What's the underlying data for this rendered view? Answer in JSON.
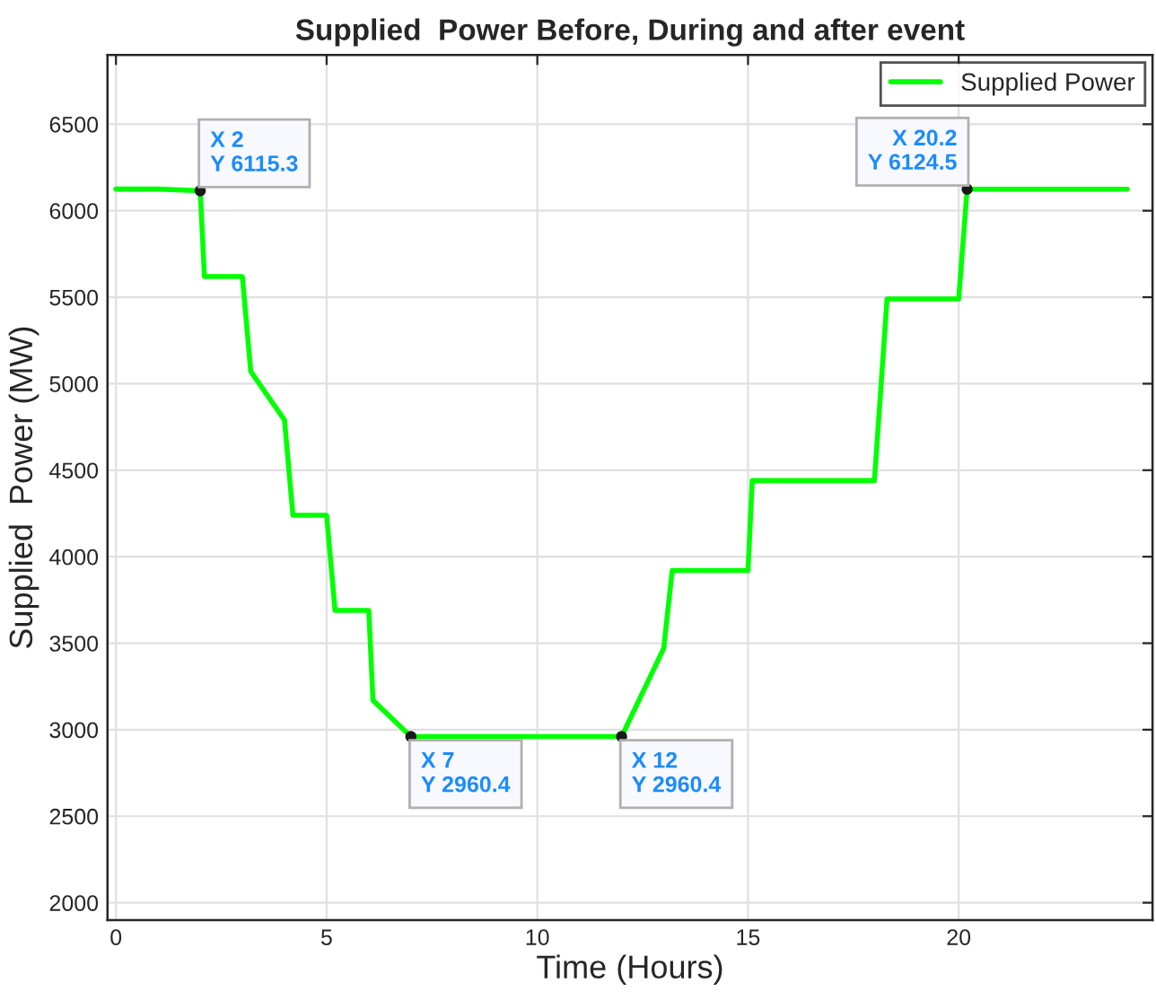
{
  "chart_data": {
    "type": "line",
    "title": "Supplied  Power Before, During and after event",
    "xlabel": "Time (Hours)",
    "ylabel": "Supplied  Power (MW)",
    "x": [
      0,
      1,
      2,
      2.1,
      3.0,
      3.2,
      4.0,
      4.2,
      5.0,
      5.2,
      6.0,
      6.1,
      7,
      12,
      13.0,
      13.2,
      15.0,
      15.1,
      18.0,
      18.3,
      20.0,
      20.2,
      24
    ],
    "series": [
      {
        "name": "Supplied Power",
        "color": "#00ff00",
        "values": [
          6125,
          6125,
          6115.3,
          5620,
          5620,
          5070,
          4790,
          4240,
          4240,
          3690,
          3690,
          3170,
          2960.4,
          2960.4,
          3470,
          3920,
          3920,
          4440,
          4440,
          5490,
          5490,
          6124.5,
          6124.5
        ]
      }
    ],
    "xlim": [
      -0.2,
      24.6
    ],
    "ylim": [
      1900,
      6900
    ],
    "xticks": [
      0,
      5,
      10,
      15,
      20
    ],
    "yticks": [
      2000,
      2500,
      3000,
      3500,
      4000,
      4500,
      5000,
      5500,
      6000,
      6500
    ],
    "grid": true,
    "legend": "top right",
    "annotations": [
      {
        "text": "X 2\nY 6115.3",
        "x": 2,
        "y": 6115.3
      },
      {
        "text": "X 7\nY 2960.4",
        "x": 7,
        "y": 2960.4
      },
      {
        "text": "X 12\nY 2960.4",
        "x": 12,
        "y": 2960.4
      },
      {
        "text": "X 20.2\nY 6124.5",
        "x": 20.2,
        "y": 6124.5
      }
    ]
  }
}
